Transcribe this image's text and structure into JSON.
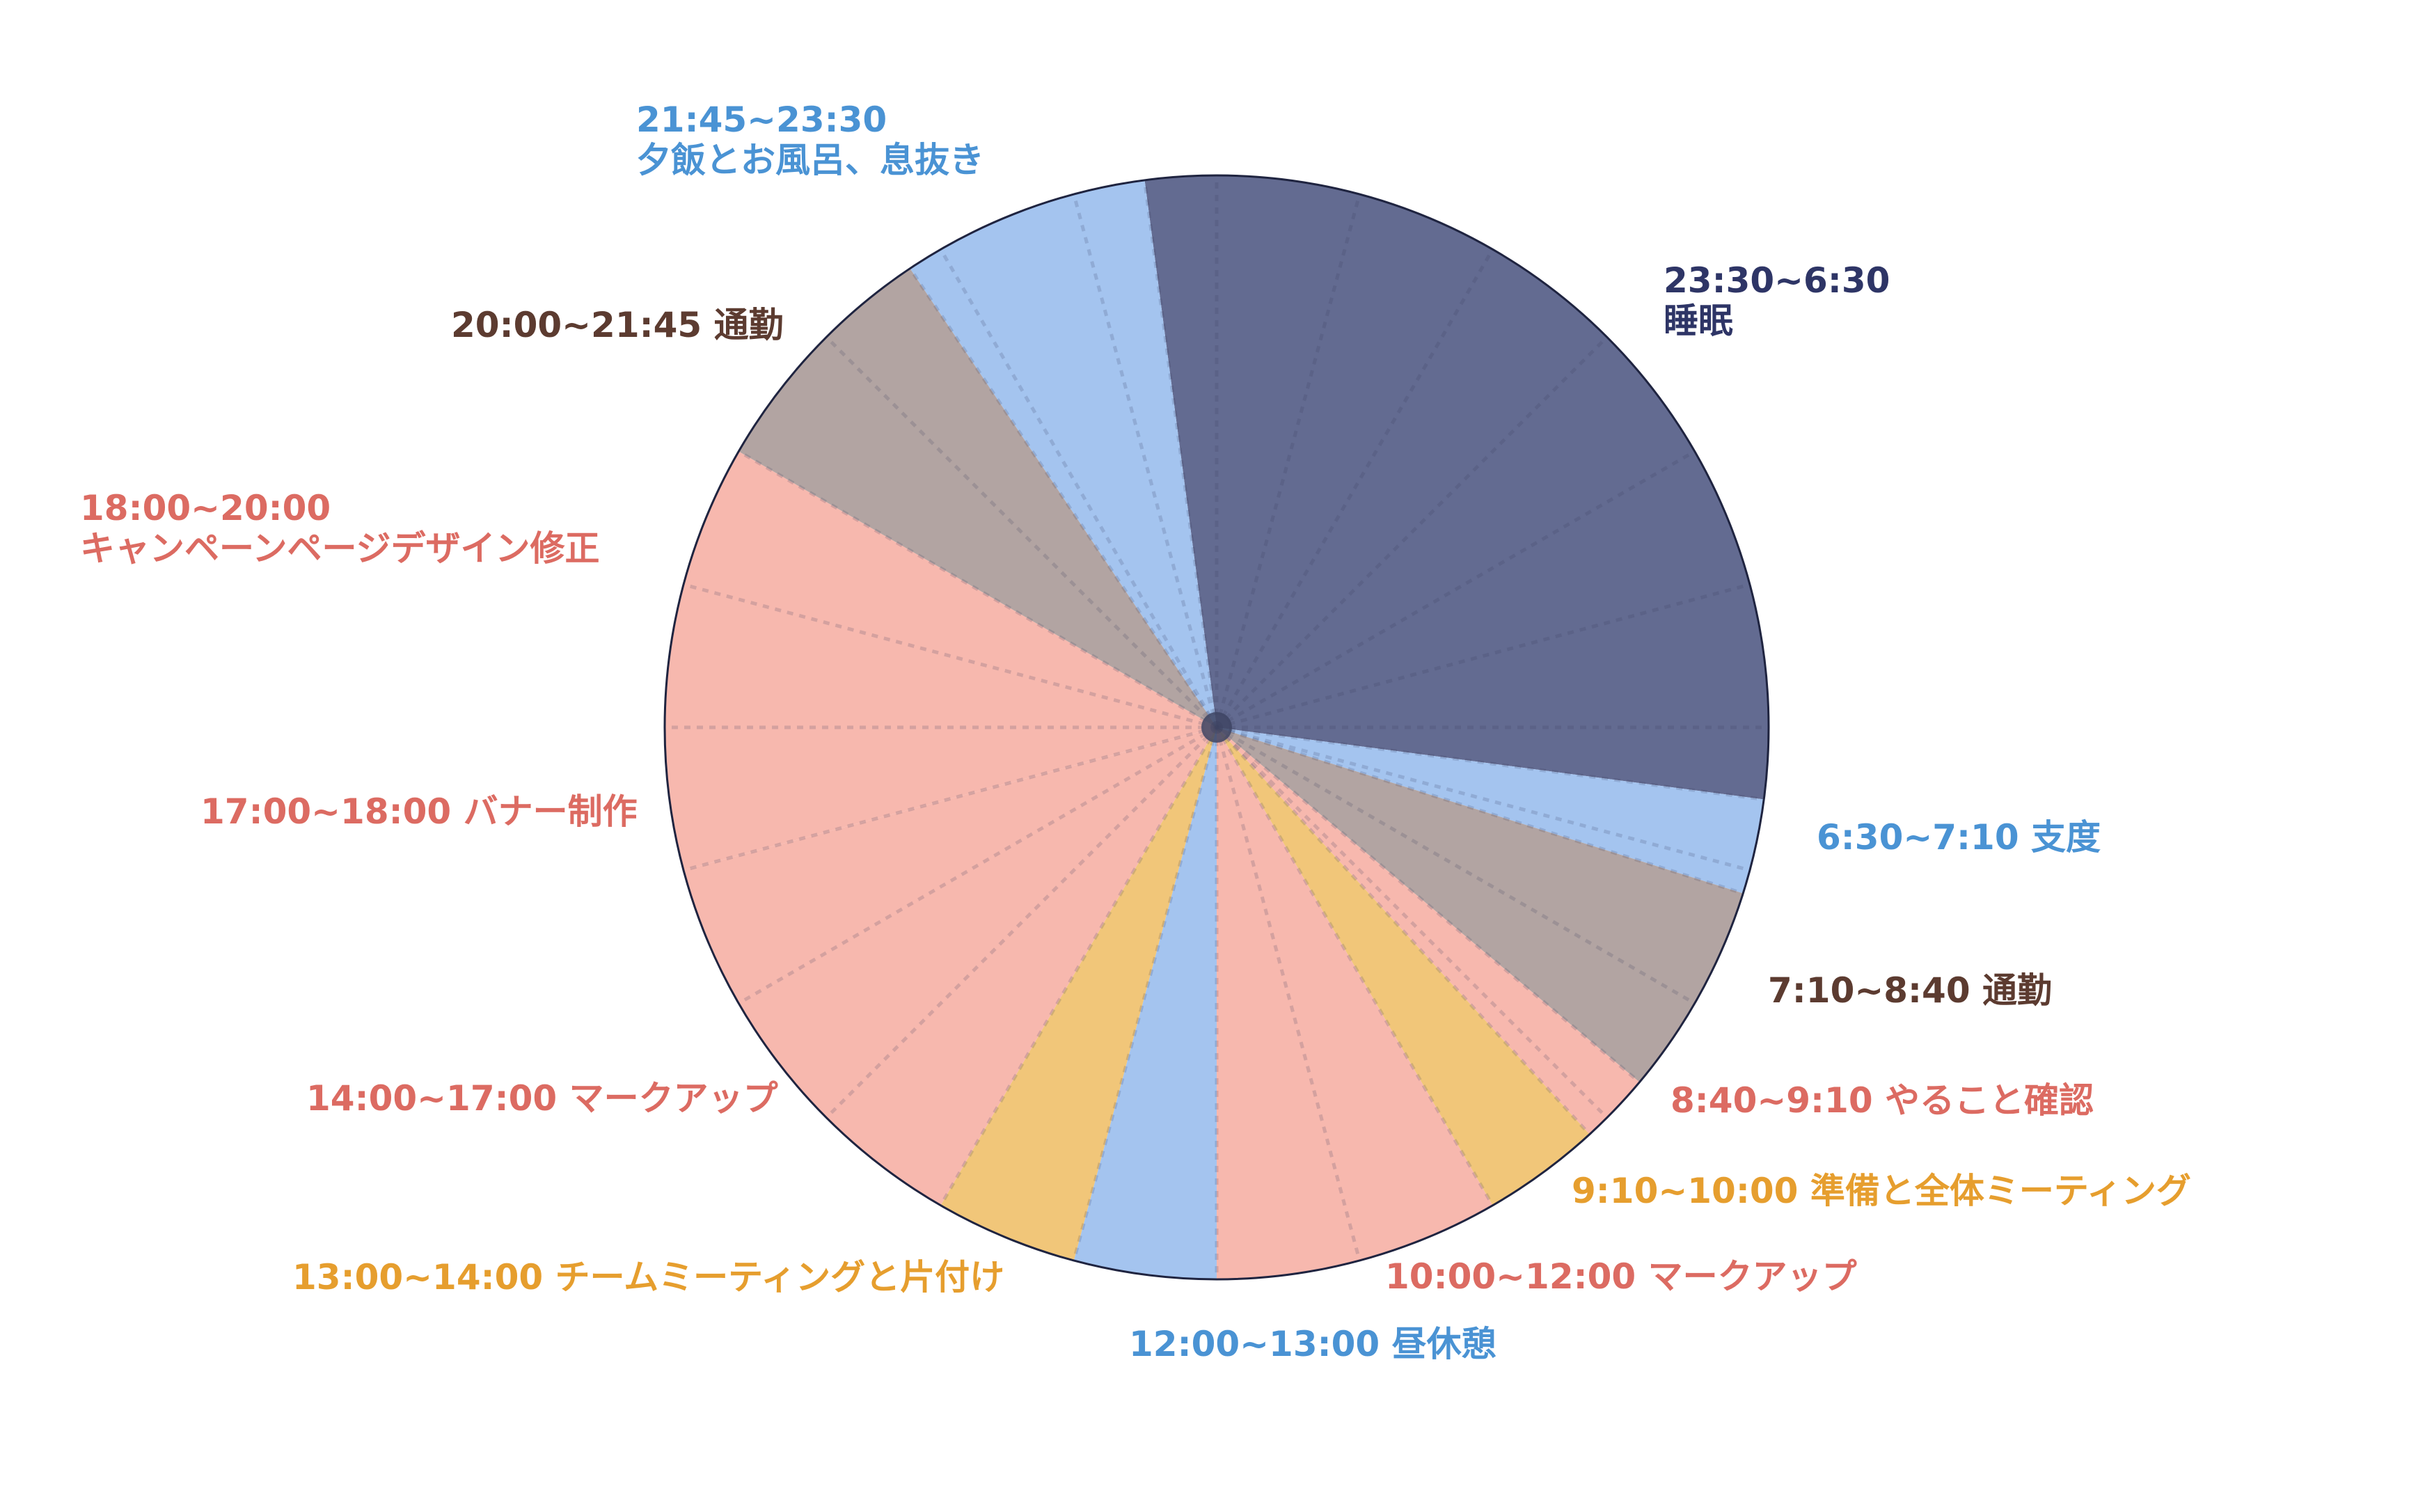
{
  "chart_data": {
    "type": "pie",
    "title": "",
    "unit": "hours",
    "clock_hours": 24,
    "start_time": "00:00",
    "direction": "clockwise",
    "slices": [
      {
        "time": "23:30~6:30",
        "activity": "睡眠",
        "start": 23.5,
        "end": 30.5,
        "hours": 7.0,
        "color": "#636b91",
        "label_color": "#2e3566",
        "label_lines": [
          "23:30~6:30",
          "睡眠"
        ]
      },
      {
        "time": "6:30~7:10",
        "activity": "支度",
        "start": 6.5,
        "end": 7.1667,
        "hours": 0.6667,
        "color": "#a4c4ef",
        "label_color": "#4a93d4",
        "label_lines": [
          "6:30~7:10 支度"
        ]
      },
      {
        "time": "7:10~8:40",
        "activity": "通勤",
        "start": 7.1667,
        "end": 8.6667,
        "hours": 1.5,
        "color": "#b2a4a2",
        "label_color": "#5c3b30",
        "label_lines": [
          "7:10~8:40 通勤"
        ]
      },
      {
        "time": "8:40~9:10",
        "activity": "やること確認",
        "start": 8.6667,
        "end": 9.1667,
        "hours": 0.5,
        "color": "#f7b8ae",
        "label_color": "#dc6b62",
        "label_lines": [
          "8:40~9:10 やること確認"
        ]
      },
      {
        "time": "9:10~10:00",
        "activity": "準備と全体ミーティング",
        "start": 9.1667,
        "end": 10.0,
        "hours": 0.8333,
        "color": "#f1c679",
        "label_color": "#e69e2e",
        "label_lines": [
          "9:10~10:00 準備と全体ミーティング"
        ]
      },
      {
        "time": "10:00~12:00",
        "activity": "マークアップ",
        "start": 10.0,
        "end": 12.0,
        "hours": 2.0,
        "color": "#f7b8ae",
        "label_color": "#dc6b62",
        "label_lines": [
          "10:00~12:00 マークアップ"
        ]
      },
      {
        "time": "12:00~13:00",
        "activity": "昼休憩",
        "start": 12.0,
        "end": 13.0,
        "hours": 1.0,
        "color": "#a4c4ef",
        "label_color": "#4a93d4",
        "label_lines": [
          "12:00~13:00 昼休憩"
        ]
      },
      {
        "time": "13:00~14:00",
        "activity": "チームミーティングと片付け",
        "start": 13.0,
        "end": 14.0,
        "hours": 1.0,
        "color": "#f1c679",
        "label_color": "#e69e2e",
        "label_lines": [
          "13:00~14:00 チームミーティングと片付け"
        ]
      },
      {
        "time": "14:00~17:00",
        "activity": "マークアップ",
        "start": 14.0,
        "end": 17.0,
        "hours": 3.0,
        "color": "#f7b8ae",
        "label_color": "#dc6b62",
        "label_lines": [
          "14:00~17:00 マークアップ"
        ]
      },
      {
        "time": "17:00~18:00",
        "activity": "バナー制作",
        "start": 17.0,
        "end": 18.0,
        "hours": 1.0,
        "color": "#f7b8ae",
        "label_color": "#dc6b62",
        "label_lines": [
          "17:00~18:00 バナー制作"
        ]
      },
      {
        "time": "18:00~20:00",
        "activity": "キャンペーンページデザイン修正",
        "start": 18.0,
        "end": 20.0,
        "hours": 2.0,
        "color": "#f7b8ae",
        "label_color": "#dc6b62",
        "label_lines": [
          "18:00~20:00",
          "キャンペーンページデザイン修正"
        ]
      },
      {
        "time": "20:00~21:45",
        "activity": "通勤",
        "start": 20.0,
        "end": 21.75,
        "hours": 1.75,
        "color": "#b2a4a2",
        "label_color": "#5c3b30",
        "label_lines": [
          "20:00~21:45 通勤"
        ]
      },
      {
        "time": "21:45~23:30",
        "activity": "夕飯とお風呂、息抜き",
        "start": 21.75,
        "end": 23.5,
        "hours": 1.75,
        "color": "#a4c4ef",
        "label_color": "#4a93d4",
        "label_lines": [
          "21:45~23:30",
          "夕飯とお風呂、息抜き"
        ]
      }
    ]
  }
}
